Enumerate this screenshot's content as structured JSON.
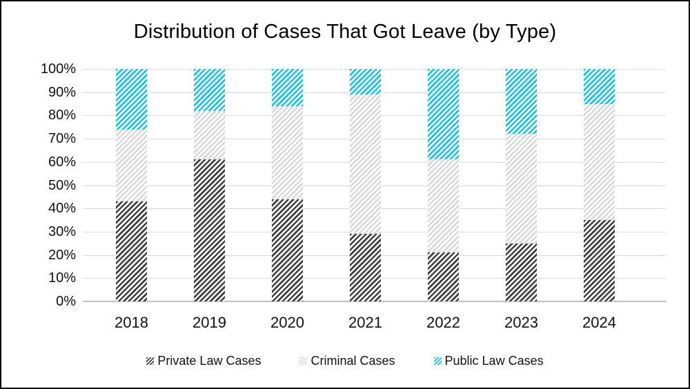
{
  "window": {
    "background_color": "#ffffff",
    "frame_border_color": "#000000"
  },
  "chart_data": {
    "type": "bar",
    "subtype": "stacked-100-percent",
    "title": "Distribution of Cases That Got Leave (by Type)",
    "categories": [
      "2018",
      "2019",
      "2020",
      "2021",
      "2022",
      "2023",
      "2024"
    ],
    "series": [
      {
        "name": "Private Law Cases",
        "color": "#404040",
        "hatch": "diagonal",
        "values": [
          43,
          61,
          44,
          29,
          21,
          25,
          35
        ]
      },
      {
        "name": "Criminal Cases",
        "color": "#d9d9d9",
        "hatch": "diagonal",
        "values": [
          31,
          21,
          40,
          60,
          40,
          47,
          50
        ]
      },
      {
        "name": "Public Law Cases",
        "color": "#1bc2e3",
        "hatch": "diagonal",
        "values": [
          26,
          18,
          16,
          11,
          39,
          28,
          15
        ]
      }
    ],
    "xlabel": "",
    "ylabel": "",
    "y_axis": {
      "min": 0,
      "max": 100,
      "tick_labels": [
        "0%",
        "10%",
        "20%",
        "30%",
        "40%",
        "50%",
        "60%",
        "70%",
        "80%",
        "90%",
        "100%"
      ]
    },
    "grid": true,
    "gridline_color": "#d9d9d9",
    "legend_position": "bottom"
  }
}
